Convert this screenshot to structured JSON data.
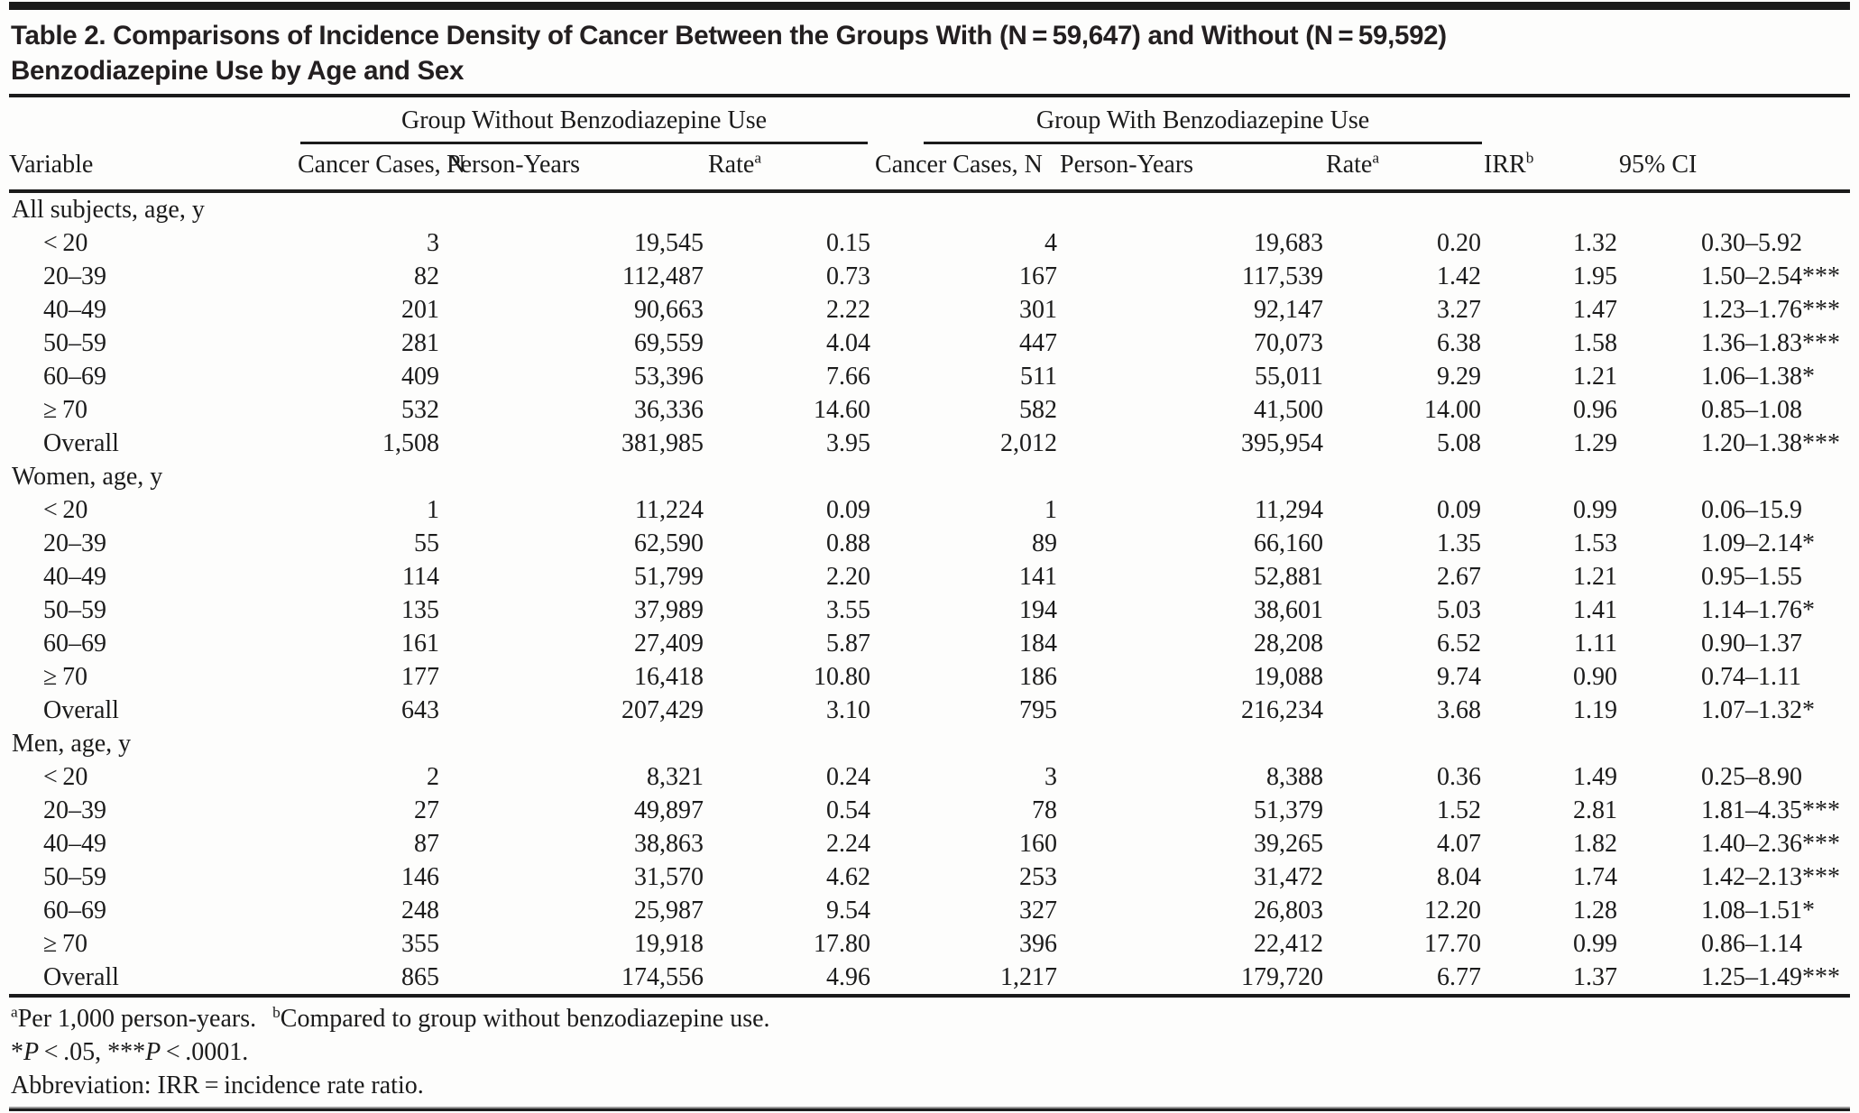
{
  "title": {
    "line1": "Table 2. Comparisons of Incidence Density of Cancer Between the Groups With (N = 59,647) and Without (N = 59,592)",
    "line2": "Benzodiazepine Use by Age and Sex"
  },
  "table": {
    "groups": {
      "without": "Group Without Benzodiazepine Use",
      "with": "Group With Benzodiazepine Use"
    },
    "columns": {
      "variable": "Variable",
      "cancer_cases": "Cancer Cases, N",
      "person_years": "Person-Years",
      "rate": "Rate",
      "rate_sup": "a",
      "irr": "IRR",
      "irr_sup": "b",
      "ci": "95% CI"
    },
    "sections": [
      {
        "label": "All subjects, age, y",
        "rows": [
          {
            "age": "< 20",
            "cells": [
              "3",
              "19,545",
              "0.15",
              "4",
              "19,683",
              "0.20",
              "1.32",
              "0.30–5.92"
            ]
          },
          {
            "age": "20–39",
            "cells": [
              "82",
              "112,487",
              "0.73",
              "167",
              "117,539",
              "1.42",
              "1.95",
              "1.50–2.54***"
            ]
          },
          {
            "age": "40–49",
            "cells": [
              "201",
              "90,663",
              "2.22",
              "301",
              "92,147",
              "3.27",
              "1.47",
              "1.23–1.76***"
            ]
          },
          {
            "age": "50–59",
            "cells": [
              "281",
              "69,559",
              "4.04",
              "447",
              "70,073",
              "6.38",
              "1.58",
              "1.36–1.83***"
            ]
          },
          {
            "age": "60–69",
            "cells": [
              "409",
              "53,396",
              "7.66",
              "511",
              "55,011",
              "9.29",
              "1.21",
              "1.06–1.38*"
            ]
          },
          {
            "age": "≥ 70",
            "cells": [
              "532",
              "36,336",
              "14.60",
              "582",
              "41,500",
              "14.00",
              "0.96",
              "0.85–1.08"
            ]
          },
          {
            "age": "Overall",
            "cells": [
              "1,508",
              "381,985",
              "3.95",
              "2,012",
              "395,954",
              "5.08",
              "1.29",
              "1.20–1.38***"
            ]
          }
        ]
      },
      {
        "label": "Women, age, y",
        "rows": [
          {
            "age": "< 20",
            "cells": [
              "1",
              "11,224",
              "0.09",
              "1",
              "11,294",
              "0.09",
              "0.99",
              "0.06–15.9"
            ]
          },
          {
            "age": "20–39",
            "cells": [
              "55",
              "62,590",
              "0.88",
              "89",
              "66,160",
              "1.35",
              "1.53",
              "1.09–2.14*"
            ]
          },
          {
            "age": "40–49",
            "cells": [
              "114",
              "51,799",
              "2.20",
              "141",
              "52,881",
              "2.67",
              "1.21",
              "0.95–1.55"
            ]
          },
          {
            "age": "50–59",
            "cells": [
              "135",
              "37,989",
              "3.55",
              "194",
              "38,601",
              "5.03",
              "1.41",
              "1.14–1.76*"
            ]
          },
          {
            "age": "60–69",
            "cells": [
              "161",
              "27,409",
              "5.87",
              "184",
              "28,208",
              "6.52",
              "1.11",
              "0.90–1.37"
            ]
          },
          {
            "age": "≥ 70",
            "cells": [
              "177",
              "16,418",
              "10.80",
              "186",
              "19,088",
              "9.74",
              "0.90",
              "0.74–1.11"
            ]
          },
          {
            "age": "Overall",
            "cells": [
              "643",
              "207,429",
              "3.10",
              "795",
              "216,234",
              "3.68",
              "1.19",
              "1.07–1.32*"
            ]
          }
        ]
      },
      {
        "label": "Men, age, y",
        "rows": [
          {
            "age": "< 20",
            "cells": [
              "2",
              "8,321",
              "0.24",
              "3",
              "8,388",
              "0.36",
              "1.49",
              "0.25–8.90"
            ]
          },
          {
            "age": "20–39",
            "cells": [
              "27",
              "49,897",
              "0.54",
              "78",
              "51,379",
              "1.52",
              "2.81",
              "1.81–4.35***"
            ]
          },
          {
            "age": "40–49",
            "cells": [
              "87",
              "38,863",
              "2.24",
              "160",
              "39,265",
              "4.07",
              "1.82",
              "1.40–2.36***"
            ]
          },
          {
            "age": "50–59",
            "cells": [
              "146",
              "31,570",
              "4.62",
              "253",
              "31,472",
              "8.04",
              "1.74",
              "1.42–2.13***"
            ]
          },
          {
            "age": "60–69",
            "cells": [
              "248",
              "25,987",
              "9.54",
              "327",
              "26,803",
              "12.20",
              "1.28",
              "1.08–1.51*"
            ]
          },
          {
            "age": "≥ 70",
            "cells": [
              "355",
              "19,918",
              "17.80",
              "396",
              "22,412",
              "17.70",
              "0.99",
              "0.86–1.14"
            ]
          },
          {
            "age": "Overall",
            "cells": [
              "865",
              "174,556",
              "4.96",
              "1,217",
              "179,720",
              "6.77",
              "1.37",
              "1.25–1.49***"
            ]
          }
        ]
      }
    ]
  },
  "footnotes": {
    "a_sup": "a",
    "a_text": "Per 1,000 person-years.",
    "b_sup": "b",
    "b_text": "Compared to group without benzodiazepine use.",
    "sig": {
      "star1": "*",
      "p1": "P",
      "rest1": " < .05, ",
      "star2": "***",
      "p2": "P",
      "rest2": " < .0001."
    },
    "abbrev": "Abbreviation: IRR = incidence rate ratio."
  },
  "colors": {
    "text": "#1b1b1b",
    "title_bar": "#1a1a1a",
    "background": "#fdfdfc"
  }
}
